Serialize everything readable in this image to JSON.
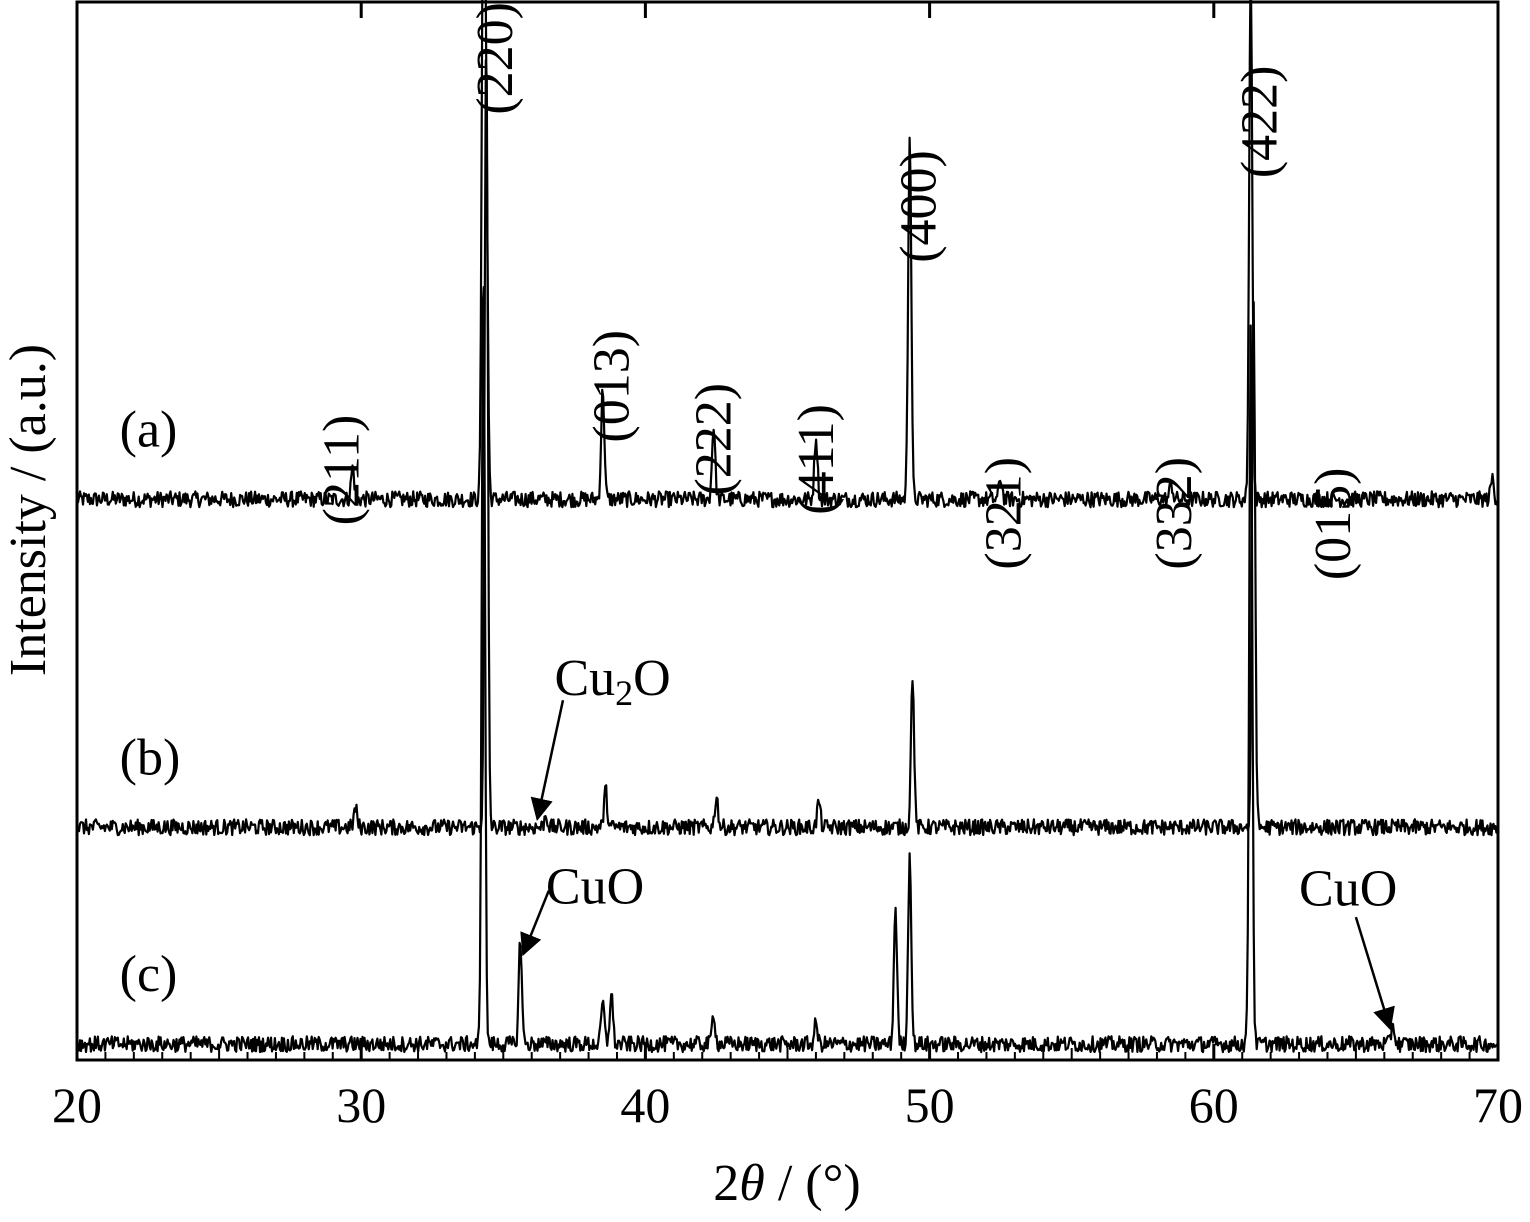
{
  "chart_data": {
    "type": "line",
    "xlabel_prefix": "2",
    "xlabel_symbol": "θ",
    "xlabel_suffix": " / (°)",
    "ylabel": "Intensity / (a.u.)",
    "xlim": [
      20,
      70
    ],
    "x_ticks": [
      20,
      30,
      40,
      50,
      60,
      70
    ],
    "x_tick_labels": [
      "20",
      "30",
      "40",
      "50",
      "60",
      "70"
    ],
    "grid": false,
    "line_color": "#000000",
    "series": [
      {
        "label": "(a)",
        "baseline": 0.53,
        "peaks": [
          {
            "x": 29.7,
            "height": 0.03
          },
          {
            "x": 34.3,
            "height": 0.6
          },
          {
            "x": 34.4,
            "height": 0.3
          },
          {
            "x": 38.5,
            "height": 0.105
          },
          {
            "x": 42.4,
            "height": 0.07
          },
          {
            "x": 46.0,
            "height": 0.06
          },
          {
            "x": 49.3,
            "height": 0.35
          },
          {
            "x": 52.5,
            "height": 0.02
          },
          {
            "x": 58.5,
            "height": 0.015
          },
          {
            "x": 61.3,
            "height": 0.51
          },
          {
            "x": 69.8,
            "height": 0.02
          }
        ]
      },
      {
        "label": "(b)",
        "baseline": 0.22,
        "peaks": [
          {
            "x": 29.8,
            "height": 0.018
          },
          {
            "x": 34.4,
            "height": 0.75
          },
          {
            "x": 36.5,
            "height": 0.012
          },
          {
            "x": 38.6,
            "height": 0.035
          },
          {
            "x": 42.5,
            "height": 0.03
          },
          {
            "x": 46.1,
            "height": 0.025
          },
          {
            "x": 49.4,
            "height": 0.145
          },
          {
            "x": 61.4,
            "height": 0.5
          }
        ]
      },
      {
        "label": "(c)",
        "baseline": 0.015,
        "peaks": [
          {
            "x": 34.3,
            "height": 0.75
          },
          {
            "x": 35.6,
            "height": 0.1
          },
          {
            "x": 38.5,
            "height": 0.04
          },
          {
            "x": 38.8,
            "height": 0.05
          },
          {
            "x": 42.4,
            "height": 0.03
          },
          {
            "x": 46.0,
            "height": 0.02
          },
          {
            "x": 48.8,
            "height": 0.13
          },
          {
            "x": 49.3,
            "height": 0.18
          },
          {
            "x": 61.3,
            "height": 0.68
          },
          {
            "x": 66.3,
            "height": 0.02
          }
        ]
      }
    ],
    "peak_labels": [
      {
        "text": "(211)",
        "x": 29.9,
        "y": 0.61
      },
      {
        "text": "(220)",
        "x": 35.3,
        "y": 1.0
      },
      {
        "text": "(013)",
        "x": 39.4,
        "y": 0.69
      },
      {
        "text": "(222)",
        "x": 43.0,
        "y": 0.64
      },
      {
        "text": "(411)",
        "x": 46.6,
        "y": 0.62
      },
      {
        "text": "(400)",
        "x": 50.2,
        "y": 0.86
      },
      {
        "text": "(321)",
        "x": 53.2,
        "y": 0.57
      },
      {
        "text": "(332)",
        "x": 59.2,
        "y": 0.57
      },
      {
        "text": "(422)",
        "x": 62.2,
        "y": 0.94
      },
      {
        "text": "(015)",
        "x": 64.8,
        "y": 0.56
      }
    ],
    "phase_annotations": [
      {
        "main": "Cu",
        "sub": "2",
        "tail": "O",
        "text_x": 36.8,
        "text_y": 0.345,
        "arrow_from": [
          37.1,
          0.34
        ],
        "arrow_to": [
          36.2,
          0.228
        ]
      },
      {
        "main": "CuO",
        "sub": "",
        "tail": "",
        "text_x": 36.5,
        "text_y": 0.148,
        "arrow_from": [
          36.6,
          0.16
        ],
        "arrow_to": [
          35.7,
          0.1
        ]
      },
      {
        "main": "CuO",
        "sub": "",
        "tail": "",
        "text_x": 63.0,
        "text_y": 0.146,
        "arrow_from": [
          65.0,
          0.135
        ],
        "arrow_to": [
          66.2,
          0.03
        ]
      }
    ]
  }
}
